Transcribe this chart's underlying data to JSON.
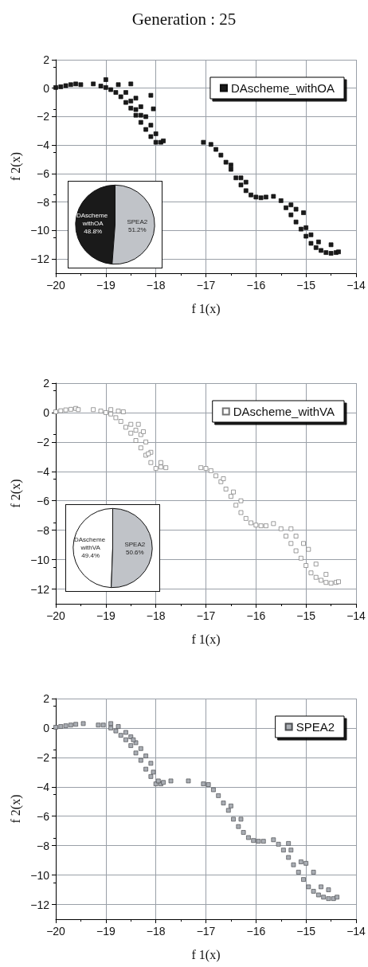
{
  "chart_data": [
    {
      "type": "scatter",
      "title": "Generation : 25",
      "xlabel": "f 1(x)",
      "ylabel": "f 2(x)",
      "xlim": [
        -20,
        -14
      ],
      "xticks": [
        -20,
        -19,
        -18,
        -17,
        -16,
        -15,
        -14
      ],
      "ylim": [
        -13,
        2
      ],
      "yticks": [
        -12,
        -10,
        -8,
        -6,
        -4,
        -2,
        0,
        2
      ],
      "grid": true,
      "legend": "top right",
      "marker": "square",
      "series": [
        {
          "name": "DAscheme_withOA",
          "color": "#1a1a1a",
          "x": [
            -20,
            -19.9,
            -19.8,
            -19.7,
            -19.6,
            -19.5,
            -19.25,
            -19.1,
            -19,
            -19,
            -18.9,
            -18.8,
            -18.7,
            -18.6,
            -18.5,
            -18.4,
            -18.3,
            -18.2,
            -18.1,
            -18.0,
            -17.9,
            -17.85,
            -18.5,
            -18.75,
            -18.1,
            -18.05,
            -18.4,
            -18.3,
            -18.6,
            -18.2,
            -18.1,
            -18.0,
            -18.5,
            -18.4,
            -18.3,
            -17.05,
            -16.9,
            -16.8,
            -16.7,
            -16.6,
            -16.5,
            -16.4,
            -16.3,
            -16.2,
            -16.1,
            -16.0,
            -15.9,
            -15.8,
            -16.5,
            -16.3,
            -16.2,
            -15.65,
            -15.5,
            -15.4,
            -15.3,
            -15.2,
            -15.1,
            -15.0,
            -14.9,
            -14.8,
            -14.7,
            -14.6,
            -14.5,
            -14.4,
            -14.35,
            -15.2,
            -15.05,
            -15.3,
            -14.9,
            -14.75,
            -14.5,
            -15.0
          ],
          "values": [
            0.05,
            0.1,
            0.18,
            0.25,
            0.3,
            0.25,
            0.3,
            0.15,
            0.6,
            0.05,
            -0.1,
            -0.3,
            -0.6,
            -1.0,
            -1.4,
            -1.9,
            -2.4,
            -2.9,
            -3.4,
            -3.8,
            -3.8,
            -3.7,
            0.3,
            0.25,
            -0.5,
            -1.45,
            -0.7,
            -1.3,
            -0.3,
            -2.0,
            -2.6,
            -3.2,
            -0.9,
            -1.5,
            -1.9,
            -3.8,
            -3.95,
            -4.3,
            -4.7,
            -5.2,
            -5.7,
            -6.3,
            -6.8,
            -7.2,
            -7.5,
            -7.65,
            -7.7,
            -7.65,
            -5.4,
            -6.3,
            -6.6,
            -7.6,
            -7.9,
            -8.4,
            -8.9,
            -9.4,
            -9.9,
            -10.4,
            -10.9,
            -11.2,
            -11.4,
            -11.55,
            -11.6,
            -11.55,
            -11.5,
            -8.5,
            -8.75,
            -8.2,
            -10.3,
            -10.8,
            -11.0,
            -9.8
          ]
        }
      ]
    },
    {
      "type": "pie",
      "categories": [
        "DAscheme withOA",
        "SPEA2"
      ],
      "values": [
        48.8,
        51.2
      ],
      "colors": [
        "#1a1a1a",
        "#c0c3c8"
      ],
      "value_labels": [
        "48.8%",
        "51.2%"
      ]
    },
    {
      "type": "scatter",
      "xlabel": "f 1(x)",
      "ylabel": "f 2(x)",
      "xlim": [
        -20,
        -14
      ],
      "xticks": [
        -20,
        -19,
        -18,
        -17,
        -16,
        -15,
        -14
      ],
      "ylim": [
        -13,
        2
      ],
      "yticks": [
        -12,
        -10,
        -8,
        -6,
        -4,
        -2,
        0,
        2
      ],
      "grid": true,
      "legend": "top right",
      "marker": "square",
      "series": [
        {
          "name": "DAscheme_withVA",
          "color": "#ffffff",
          "x": [
            -20,
            -19.9,
            -19.8,
            -19.7,
            -19.6,
            -19.55,
            -19.25,
            -19.1,
            -19.0,
            -18.9,
            -18.8,
            -18.7,
            -18.6,
            -18.5,
            -18.4,
            -18.3,
            -18.2,
            -18.1,
            -18.0,
            -17.9,
            -17.8,
            -18.9,
            -18.75,
            -18.65,
            -18.5,
            -18.4,
            -18.3,
            -18.2,
            -18.1,
            -18.35,
            -18.25,
            -18.15,
            -17.9,
            -17.1,
            -17.0,
            -16.9,
            -16.8,
            -16.7,
            -16.6,
            -16.5,
            -16.4,
            -16.3,
            -16.2,
            -16.1,
            -16.0,
            -15.9,
            -15.8,
            -16.65,
            -16.45,
            -16.3,
            -15.65,
            -15.5,
            -15.4,
            -15.3,
            -15.2,
            -15.1,
            -15.0,
            -14.9,
            -14.8,
            -14.7,
            -14.6,
            -14.5,
            -14.4,
            -14.35,
            -15.3,
            -15.2,
            -15.05,
            -14.95,
            -14.8,
            -14.6
          ],
          "values": [
            0.05,
            0.12,
            0.18,
            0.22,
            0.28,
            0.2,
            0.2,
            0.1,
            0.0,
            -0.1,
            -0.35,
            -0.6,
            -1.0,
            -1.4,
            -1.9,
            -2.4,
            -2.9,
            -3.4,
            -3.8,
            -3.7,
            -3.75,
            0.2,
            0.1,
            0.05,
            -0.8,
            -1.2,
            -1.5,
            -2.0,
            -2.7,
            -0.8,
            -1.3,
            -2.8,
            -3.4,
            -3.75,
            -3.8,
            -3.95,
            -4.3,
            -4.7,
            -5.2,
            -5.7,
            -6.3,
            -6.8,
            -7.2,
            -7.5,
            -7.65,
            -7.7,
            -7.7,
            -4.5,
            -5.4,
            -6.0,
            -7.55,
            -7.9,
            -8.4,
            -8.9,
            -9.4,
            -9.9,
            -10.4,
            -10.9,
            -11.2,
            -11.4,
            -11.55,
            -11.6,
            -11.55,
            -11.5,
            -7.9,
            -8.4,
            -8.9,
            -9.3,
            -10.3,
            -11.0
          ]
        }
      ]
    },
    {
      "type": "pie",
      "categories": [
        "DAscheme withVA",
        "SPEA2"
      ],
      "values": [
        49.4,
        50.6
      ],
      "colors": [
        "#ffffff",
        "#c0c3c8"
      ],
      "value_labels": [
        "49.4%",
        "50.6%"
      ]
    },
    {
      "type": "scatter",
      "xlabel": "f 1(x)",
      "ylabel": "f 2(x)",
      "xlim": [
        -20,
        -14
      ],
      "xticks": [
        -20,
        -19,
        -18,
        -17,
        -16,
        -15,
        -14
      ],
      "ylim": [
        -13,
        2
      ],
      "yticks": [
        -12,
        -10,
        -8,
        -6,
        -4,
        -2,
        0,
        2
      ],
      "grid": true,
      "legend": "top right",
      "marker": "square",
      "series": [
        {
          "name": "SPEA2",
          "color": "#a9adb3",
          "x": [
            -20,
            -19.9,
            -19.8,
            -19.7,
            -19.6,
            -19.45,
            -19.15,
            -19.05,
            -18.9,
            -18.8,
            -18.7,
            -18.6,
            -18.5,
            -18.4,
            -18.3,
            -18.2,
            -18.1,
            -18.0,
            -17.9,
            -17.85,
            -17.7,
            -17.35,
            -18.9,
            -18.75,
            -18.6,
            -18.5,
            -18.4,
            -18.3,
            -18.2,
            -18.1,
            -18.45,
            -18.05,
            -17.95,
            -17.05,
            -16.95,
            -16.85,
            -16.75,
            -16.65,
            -16.55,
            -16.45,
            -16.35,
            -16.25,
            -16.15,
            -16.05,
            -15.95,
            -15.85,
            -16.5,
            -16.3,
            -15.65,
            -15.55,
            -15.45,
            -15.35,
            -15.25,
            -15.15,
            -15.05,
            -14.95,
            -14.85,
            -14.75,
            -14.65,
            -14.55,
            -14.45,
            -14.38,
            -15.35,
            -15.3,
            -15.1,
            -15.0,
            -14.85,
            -14.7,
            -14.55
          ],
          "values": [
            0.05,
            0.1,
            0.15,
            0.2,
            0.25,
            0.3,
            0.2,
            0.2,
            0.0,
            -0.2,
            -0.5,
            -0.8,
            -1.2,
            -1.7,
            -2.2,
            -2.8,
            -3.3,
            -3.8,
            -3.8,
            -3.7,
            -3.6,
            -3.6,
            0.3,
            0.1,
            -0.3,
            -0.6,
            -1.0,
            -1.4,
            -1.9,
            -2.4,
            -0.8,
            -3.0,
            -3.6,
            -3.8,
            -3.85,
            -4.2,
            -4.6,
            -5.1,
            -5.6,
            -6.2,
            -6.7,
            -7.1,
            -7.45,
            -7.65,
            -7.7,
            -7.7,
            -5.3,
            -6.2,
            -7.6,
            -7.9,
            -8.3,
            -8.8,
            -9.3,
            -9.8,
            -10.3,
            -10.8,
            -11.1,
            -11.35,
            -11.5,
            -11.6,
            -11.6,
            -11.5,
            -7.85,
            -8.3,
            -9.1,
            -9.2,
            -9.8,
            -10.8,
            -11.0
          ]
        }
      ]
    }
  ]
}
